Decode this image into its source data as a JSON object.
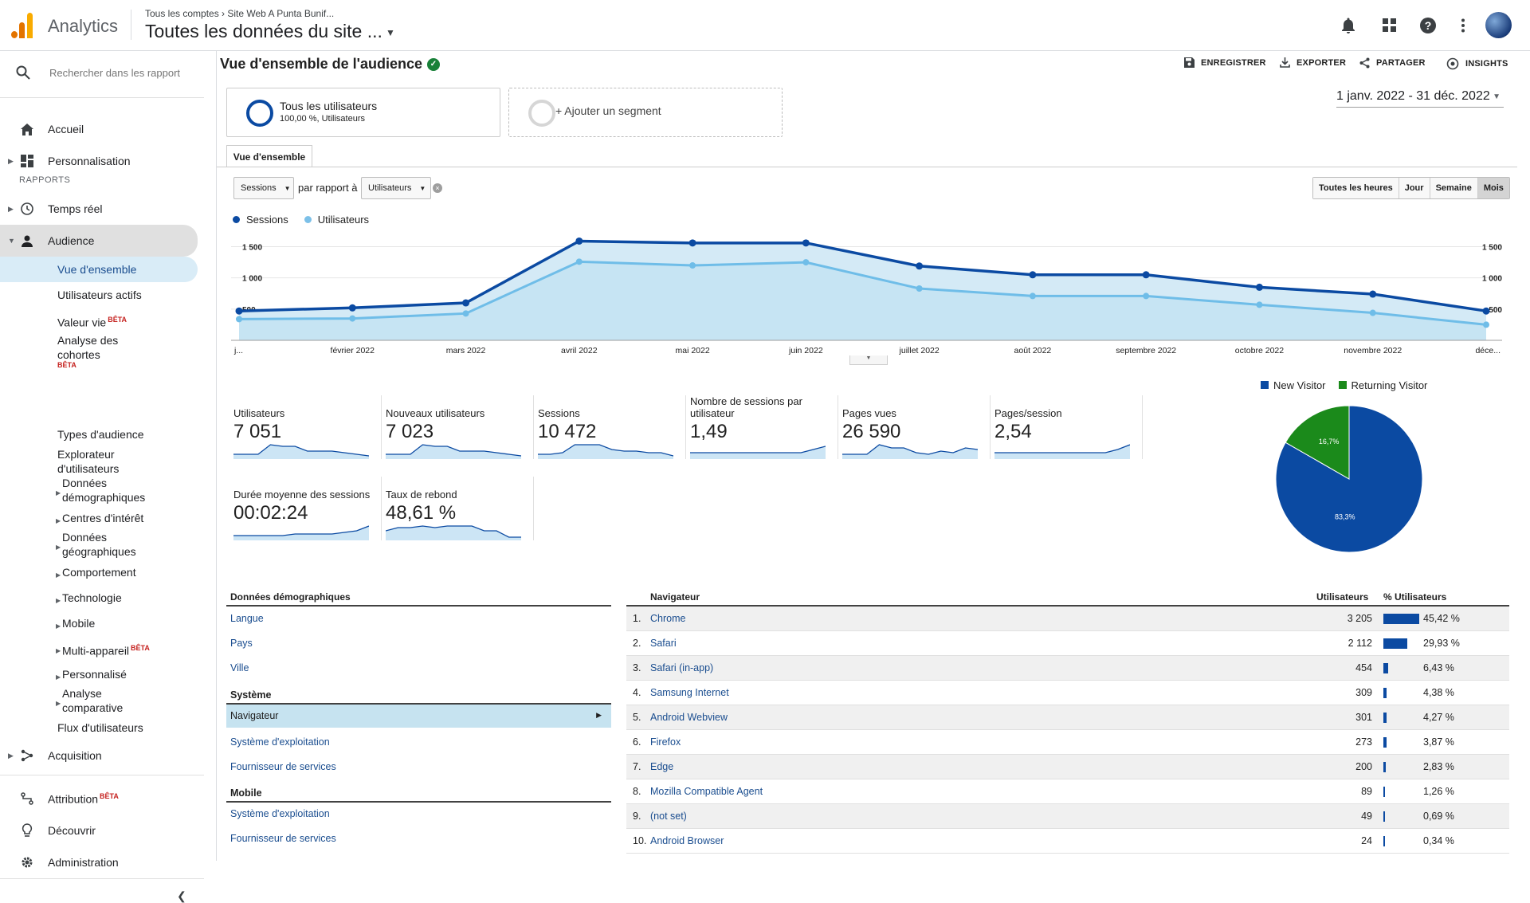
{
  "topbar": {
    "app_title": "Analytics",
    "breadcrumb": "Tous les comptes › Site Web A Punta Bunif...",
    "property": "Toutes les données du site ...",
    "icons": [
      "bell-icon",
      "apps-icon",
      "help-icon",
      "more-vert-icon"
    ]
  },
  "sidebar": {
    "search_placeholder": "Rechercher dans les rapport",
    "home": "Accueil",
    "custom": "Personnalisation",
    "reports_label": "RAPPORTS",
    "realtime": "Temps réel",
    "audience": "Audience",
    "audience_items": {
      "overview": "Vue d'ensemble",
      "active_users": "Utilisateurs actifs",
      "lifetime_value": "Valeur vie",
      "cohort_1": "Analyse des",
      "cohort_2": "cohortes",
      "types": "Types d'audience",
      "explorer_1": "Explorateur",
      "explorer_2": "d'utilisateurs",
      "demo_1": "Données",
      "demo_2": "démographiques",
      "interests": "Centres d'intérêt",
      "geo_1": "Données",
      "geo_2": "géographiques",
      "behavior": "Comportement",
      "technology": "Technologie",
      "mobile": "Mobile",
      "multidevice": "Multi-appareil",
      "custom": "Personnalisé",
      "benchmark_1": "Analyse",
      "benchmark_2": "comparative",
      "flow": "Flux d'utilisateurs"
    },
    "beta": "BÊTA",
    "acquisition": "Acquisition",
    "attribution": "Attribution",
    "discover": "Découvrir",
    "admin": "Administration"
  },
  "header": {
    "title": "Vue d'ensemble de l'audience",
    "save": "ENREGISTRER",
    "export": "EXPORTER",
    "share": "PARTAGER",
    "insights": "INSIGHTS"
  },
  "segments": {
    "all_users": "Tous les utilisateurs",
    "all_users_sub": "100,00 %, Utilisateurs",
    "add": "+ Ajouter un segment"
  },
  "date_range": "1 janv. 2022 - 31 déc. 2022",
  "tab": "Vue d'ensemble",
  "controls": {
    "metric1": "Sessions",
    "vs": "par rapport à",
    "metric2": "Utilisateurs",
    "gran": [
      "Toutes les heures",
      "Jour",
      "Semaine",
      "Mois"
    ]
  },
  "chart_data": {
    "type": "line",
    "categories": [
      "j...",
      "février 2022",
      "mars 2022",
      "avril 2022",
      "mai 2022",
      "juin 2022",
      "juillet 2022",
      "août 2022",
      "septembre 2022",
      "octobre 2022",
      "novembre 2022",
      "déce..."
    ],
    "series": [
      {
        "name": "Sessions",
        "color": "#0b4aa2",
        "values": [
          470,
          520,
          600,
          1590,
          1560,
          1560,
          1190,
          1050,
          1050,
          850,
          740,
          470
        ]
      },
      {
        "name": "Utilisateurs",
        "color": "#7cc0e8",
        "values": [
          340,
          350,
          430,
          1260,
          1200,
          1250,
          830,
          710,
          710,
          570,
          440,
          250
        ]
      }
    ],
    "yticks": [
      "500",
      "1 000",
      "1 500"
    ],
    "ylim": [
      0,
      1660
    ]
  },
  "metrics": [
    {
      "label": "Utilisateurs",
      "value": "7 051",
      "spark": [
        3,
        3,
        3,
        9,
        8,
        8,
        5,
        5,
        5,
        4,
        3,
        2
      ]
    },
    {
      "label": "Nouveaux utilisateurs",
      "value": "7 023",
      "spark": [
        3,
        3,
        3,
        9,
        8,
        8,
        5,
        5,
        5,
        4,
        3,
        2
      ]
    },
    {
      "label": "Sessions",
      "value": "10 472",
      "spark": [
        3,
        3,
        4,
        9,
        9,
        9,
        6,
        5,
        5,
        4,
        4,
        2
      ]
    },
    {
      "label": "Nombre de sessions par utilisateur",
      "value": "1,49",
      "spark": [
        4,
        4,
        4,
        4,
        4,
        4,
        4,
        4,
        4,
        4,
        6,
        8
      ]
    },
    {
      "label": "Pages vues",
      "value": "26 590",
      "spark": [
        3,
        3,
        3,
        9,
        7,
        7,
        4,
        3,
        5,
        4,
        7,
        6
      ]
    },
    {
      "label": "Pages/session",
      "value": "2,54",
      "spark": [
        4,
        4,
        4,
        4,
        4,
        4,
        4,
        4,
        4,
        4,
        6,
        9
      ]
    },
    {
      "label": "Durée moyenne des sessions",
      "value": "00:02:24",
      "spark": [
        3,
        3,
        3,
        3,
        3,
        4,
        4,
        4,
        4,
        5,
        6,
        9
      ]
    },
    {
      "label": "Taux de rebond",
      "value": "48,61 %",
      "spark": [
        6,
        8,
        8,
        9,
        8,
        9,
        9,
        9,
        6,
        6,
        2,
        2
      ]
    }
  ],
  "pie": {
    "legend": [
      "New Visitor",
      "Returning Visitor"
    ],
    "values": [
      83.3,
      16.7
    ],
    "labels": [
      "83,3%",
      "16,7%"
    ],
    "colors": [
      "#0b4aa2",
      "#1b8a1b"
    ]
  },
  "left_table": {
    "demo_header": "Données démographiques",
    "demo_links": [
      "Langue",
      "Pays",
      "Ville"
    ],
    "system_header": "Système",
    "system_selected": "Navigateur",
    "system_links": [
      "Système d'exploitation",
      "Fournisseur de services"
    ],
    "mobile_header": "Mobile",
    "mobile_links": [
      "Système d'exploitation",
      "Fournisseur de services"
    ]
  },
  "browser_table": {
    "col_name": "Navigateur",
    "col_users": "Utilisateurs",
    "col_pct": "% Utilisateurs",
    "rows": [
      {
        "n": "1.",
        "name": "Chrome",
        "users": "3 205",
        "pct": "45,42 %",
        "frac": 0.4542
      },
      {
        "n": "2.",
        "name": "Safari",
        "users": "2 112",
        "pct": "29,93 %",
        "frac": 0.2993
      },
      {
        "n": "3.",
        "name": "Safari (in-app)",
        "users": "454",
        "pct": "6,43 %",
        "frac": 0.0643
      },
      {
        "n": "4.",
        "name": "Samsung Internet",
        "users": "309",
        "pct": "4,38 %",
        "frac": 0.0438
      },
      {
        "n": "5.",
        "name": "Android Webview",
        "users": "301",
        "pct": "4,27 %",
        "frac": 0.0427
      },
      {
        "n": "6.",
        "name": "Firefox",
        "users": "273",
        "pct": "3,87 %",
        "frac": 0.0387
      },
      {
        "n": "7.",
        "name": "Edge",
        "users": "200",
        "pct": "2,83 %",
        "frac": 0.0283
      },
      {
        "n": "8.",
        "name": "Mozilla Compatible Agent",
        "users": "89",
        "pct": "1,26 %",
        "frac": 0.0126
      },
      {
        "n": "9.",
        "name": "(not set)",
        "users": "49",
        "pct": "0,69 %",
        "frac": 0.0069
      },
      {
        "n": "10.",
        "name": "Android Browser",
        "users": "24",
        "pct": "0,34 %",
        "frac": 0.0034
      }
    ]
  }
}
